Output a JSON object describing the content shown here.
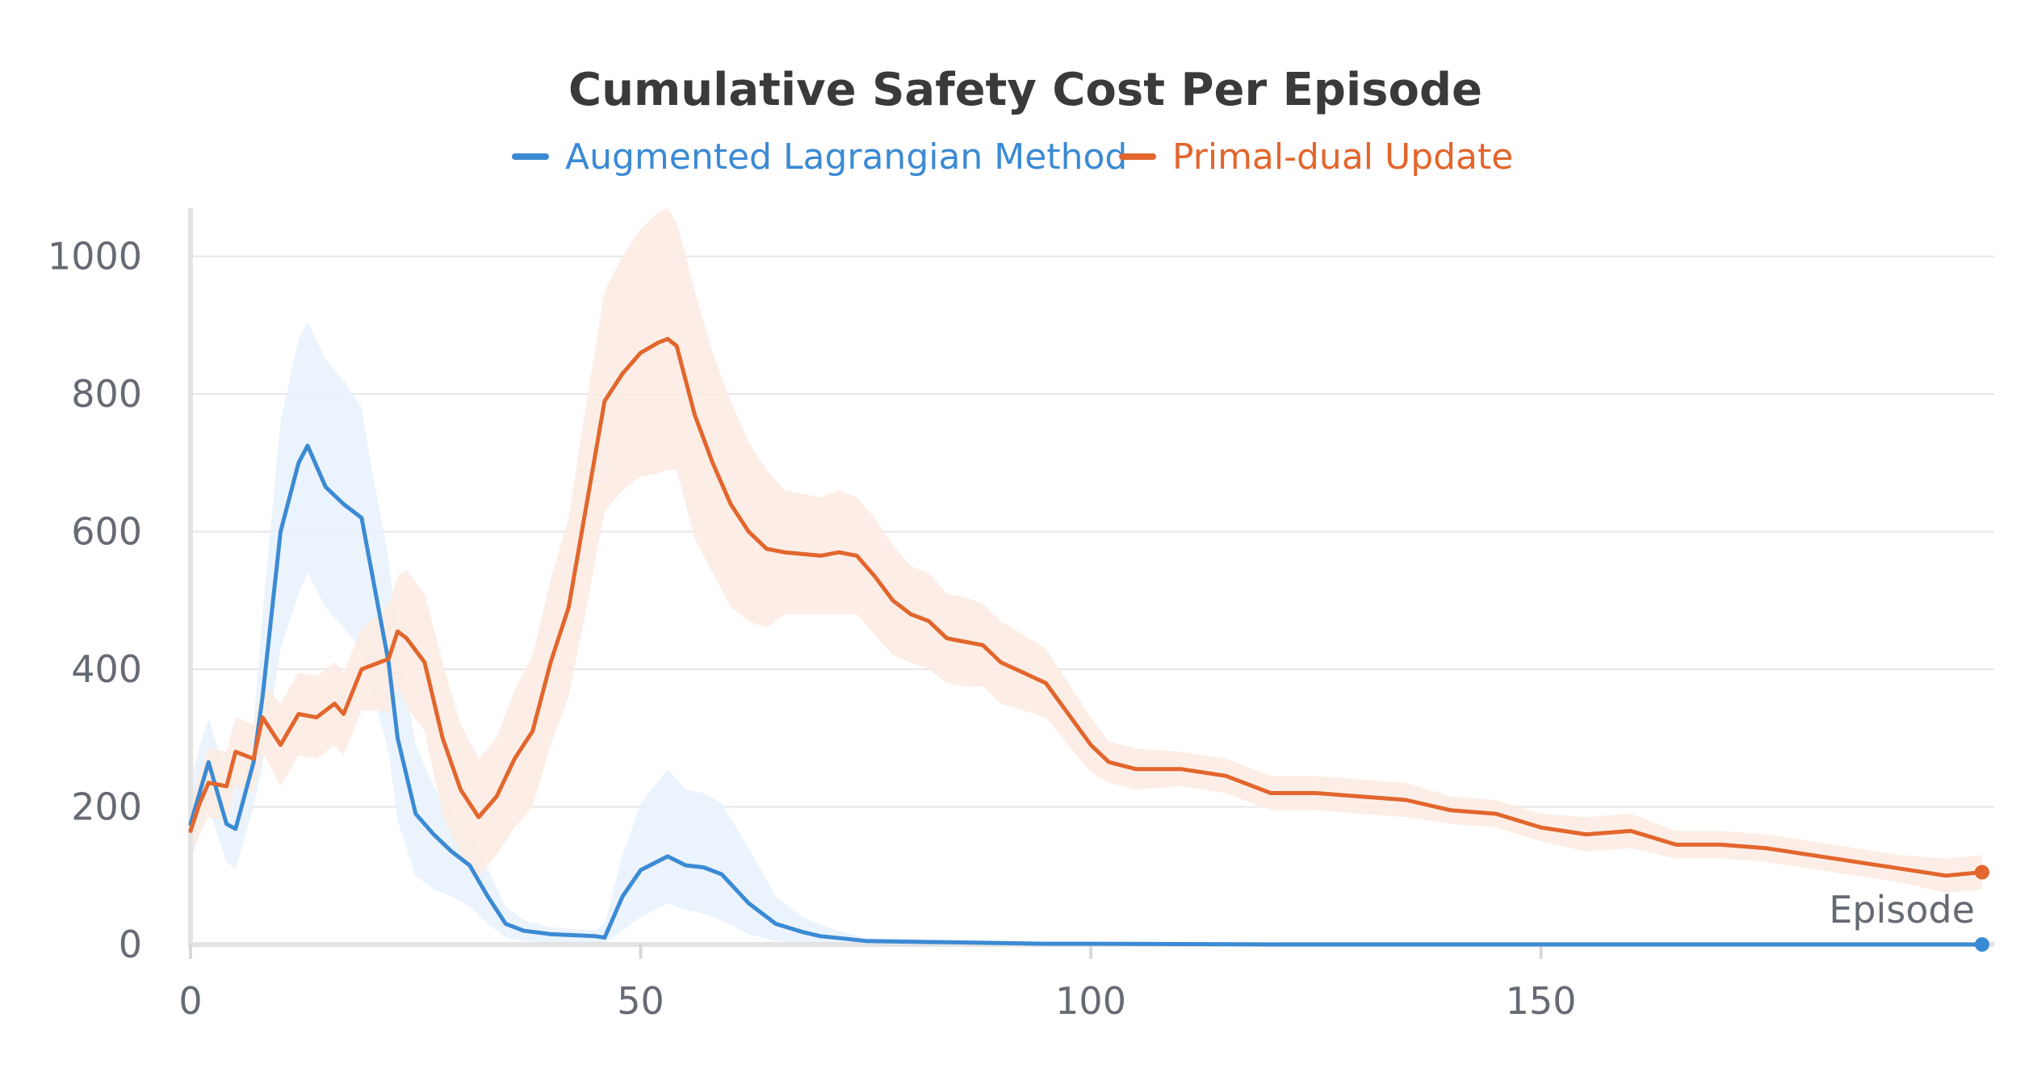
{
  "chart_data": {
    "type": "line",
    "title": "Cumulative Safety Cost Per Episode",
    "xlabel": "Episode",
    "ylabel": "",
    "xlim": [
      0,
      200
    ],
    "ylim": [
      0,
      1070
    ],
    "x_ticks": [
      0,
      50,
      100,
      150
    ],
    "y_ticks": [
      0,
      200,
      400,
      600,
      800,
      1000
    ],
    "grid": "horizontal",
    "legend_position": "top-center",
    "series": [
      {
        "name": "Augmented Lagrangian Method",
        "color": "#3b8ad4",
        "band_color": "#e8f1fb",
        "x": [
          0,
          2,
          4,
          5,
          7,
          8,
          10,
          12,
          13,
          15,
          17,
          19,
          20,
          22,
          23,
          25,
          27,
          29,
          31,
          33,
          35,
          37,
          40,
          45,
          46,
          48,
          50,
          53,
          55,
          57,
          59,
          62,
          65,
          68,
          70,
          73,
          75,
          80,
          85,
          90,
          95,
          100,
          120,
          140,
          199
        ],
        "values": [
          175,
          265,
          175,
          168,
          265,
          360,
          600,
          700,
          725,
          665,
          640,
          620,
          550,
          410,
          300,
          190,
          160,
          135,
          115,
          70,
          30,
          20,
          15,
          12,
          10,
          70,
          108,
          128,
          115,
          112,
          102,
          60,
          30,
          18,
          12,
          8,
          5,
          4,
          3,
          2,
          1,
          1,
          0,
          0,
          0
        ],
        "upper": [
          240,
          330,
          240,
          230,
          320,
          480,
          760,
          880,
          905,
          850,
          820,
          780,
          700,
          560,
          440,
          290,
          230,
          190,
          160,
          110,
          55,
          35,
          25,
          20,
          30,
          130,
          205,
          255,
          225,
          220,
          205,
          140,
          70,
          40,
          28,
          16,
          10,
          8,
          6,
          4,
          3,
          3,
          2,
          1,
          1
        ],
        "lower": [
          120,
          200,
          120,
          110,
          200,
          260,
          430,
          510,
          540,
          490,
          460,
          430,
          380,
          280,
          180,
          100,
          80,
          70,
          55,
          30,
          10,
          5,
          3,
          3,
          2,
          20,
          40,
          60,
          50,
          45,
          35,
          15,
          5,
          3,
          2,
          1,
          0,
          0,
          0,
          0,
          0,
          0,
          0,
          0,
          0
        ]
      },
      {
        "name": "Primal-dual Update",
        "color": "#e2662d",
        "band_color": "#fcebe2",
        "x": [
          0,
          1,
          2,
          4,
          5,
          7,
          8,
          10,
          12,
          14,
          16,
          17,
          19,
          21,
          22,
          23,
          24,
          26,
          28,
          30,
          32,
          34,
          36,
          38,
          40,
          42,
          44,
          46,
          48,
          50,
          52,
          53,
          54,
          56,
          58,
          60,
          62,
          64,
          66,
          70,
          72,
          74,
          76,
          78,
          80,
          82,
          84,
          86,
          88,
          90,
          95,
          100,
          102,
          105,
          110,
          115,
          120,
          125,
          130,
          135,
          140,
          145,
          150,
          155,
          160,
          165,
          170,
          175,
          180,
          185,
          190,
          195,
          199
        ],
        "values": [
          165,
          205,
          235,
          230,
          280,
          270,
          330,
          290,
          335,
          330,
          350,
          335,
          400,
          410,
          415,
          455,
          445,
          410,
          300,
          225,
          185,
          215,
          270,
          310,
          410,
          490,
          640,
          790,
          830,
          860,
          875,
          880,
          870,
          770,
          700,
          640,
          600,
          575,
          570,
          565,
          570,
          565,
          535,
          500,
          480,
          470,
          445,
          440,
          435,
          410,
          380,
          290,
          265,
          255,
          255,
          245,
          220,
          220,
          215,
          210,
          195,
          190,
          170,
          160,
          165,
          145,
          145,
          140,
          130,
          120,
          110,
          100,
          105
        ],
        "upper": [
          200,
          250,
          285,
          280,
          330,
          320,
          380,
          350,
          395,
          390,
          410,
          395,
          460,
          480,
          495,
          535,
          545,
          510,
          410,
          320,
          270,
          300,
          370,
          420,
          530,
          620,
          790,
          950,
          1000,
          1040,
          1065,
          1070,
          1050,
          950,
          860,
          790,
          730,
          690,
          660,
          650,
          660,
          650,
          620,
          580,
          550,
          540,
          510,
          505,
          495,
          470,
          430,
          330,
          295,
          285,
          280,
          270,
          245,
          245,
          240,
          235,
          215,
          210,
          190,
          185,
          190,
          165,
          165,
          160,
          150,
          140,
          130,
          125,
          130
        ],
        "lower": [
          130,
          160,
          185,
          180,
          230,
          220,
          280,
          230,
          275,
          270,
          290,
          275,
          340,
          340,
          335,
          375,
          345,
          310,
          190,
          130,
          100,
          130,
          170,
          200,
          290,
          360,
          490,
          630,
          660,
          680,
          685,
          690,
          690,
          590,
          540,
          490,
          470,
          460,
          480,
          480,
          480,
          480,
          450,
          420,
          410,
          400,
          380,
          375,
          375,
          350,
          330,
          250,
          235,
          225,
          230,
          220,
          195,
          195,
          190,
          185,
          175,
          170,
          150,
          135,
          140,
          125,
          125,
          120,
          110,
          100,
          90,
          75,
          80
        ]
      }
    ]
  }
}
